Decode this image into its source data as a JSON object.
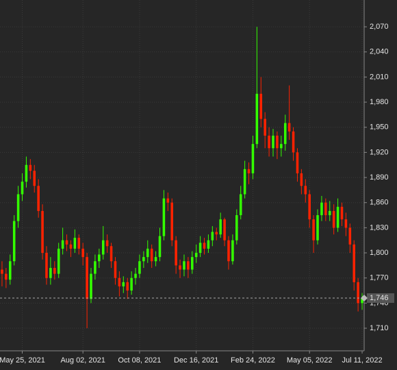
{
  "chart_data": {
    "type": "candlestick",
    "up_color": "#33ff00",
    "down_color": "#ff2200",
    "grid": true,
    "xlim": [
      0,
      90
    ],
    "xticks": [
      {
        "value": 5,
        "label": "May 25, 2021"
      },
      {
        "value": 20,
        "label": "Aug 02, 2021"
      },
      {
        "value": 34,
        "label": "Oct 08, 2021"
      },
      {
        "value": 48,
        "label": "Dec 16, 2021"
      },
      {
        "value": 62,
        "label": "Feb 24, 2022"
      },
      {
        "value": 76,
        "label": "May 05, 2022"
      },
      {
        "value": 89,
        "label": "Jul 11, 2022"
      }
    ],
    "ylim": [
      1683,
      2102
    ],
    "yticks": [
      {
        "value": 1710,
        "label": "1,710"
      },
      {
        "value": 1740,
        "label": "1,740"
      },
      {
        "value": 1770,
        "label": "1,770"
      },
      {
        "value": 1800,
        "label": "1,800"
      },
      {
        "value": 1830,
        "label": "1,830"
      },
      {
        "value": 1860,
        "label": "1,860"
      },
      {
        "value": 1890,
        "label": "1,890"
      },
      {
        "value": 1920,
        "label": "1,920"
      },
      {
        "value": 1950,
        "label": "1,950"
      },
      {
        "value": 1980,
        "label": "1,980"
      },
      {
        "value": 2010,
        "label": "2,010"
      },
      {
        "value": 2040,
        "label": "2,040"
      },
      {
        "value": 2070,
        "label": "2,070"
      }
    ],
    "last_price": {
      "value": 1746,
      "label": "1,746"
    },
    "open": [
      1780,
      1775,
      1768,
      1790,
      1838,
      1870,
      1885,
      1905,
      1898,
      1880,
      1850,
      1800,
      1770,
      1782,
      1775,
      1805,
      1815,
      1810,
      1805,
      1818,
      1805,
      1795,
      1745,
      1775,
      1790,
      1798,
      1815,
      1808,
      1790,
      1770,
      1760,
      1765,
      1755,
      1770,
      1775,
      1790,
      1795,
      1805,
      1790,
      1795,
      1820,
      1865,
      1860,
      1815,
      1785,
      1780,
      1790,
      1780,
      1795,
      1800,
      1812,
      1805,
      1815,
      1825,
      1822,
      1840,
      1815,
      1790,
      1815,
      1845,
      1870,
      1900,
      1895,
      1930,
      1990,
      1960,
      1940,
      1925,
      1940,
      1925,
      1930,
      1955,
      1945,
      1920,
      1895,
      1880,
      1870,
      1840,
      1815,
      1845,
      1860,
      1845,
      1850,
      1830,
      1855,
      1840,
      1830,
      1810,
      1765,
      1740
    ],
    "high": [
      1790,
      1782,
      1798,
      1845,
      1880,
      1895,
      1915,
      1912,
      1905,
      1888,
      1858,
      1808,
      1795,
      1790,
      1812,
      1830,
      1822,
      1815,
      1828,
      1822,
      1812,
      1800,
      1782,
      1798,
      1805,
      1832,
      1822,
      1812,
      1795,
      1778,
      1772,
      1770,
      1778,
      1782,
      1798,
      1802,
      1815,
      1810,
      1802,
      1830,
      1875,
      1872,
      1865,
      1820,
      1792,
      1798,
      1795,
      1802,
      1810,
      1820,
      1818,
      1822,
      1832,
      1830,
      1848,
      1842,
      1820,
      1822,
      1852,
      1880,
      1910,
      1908,
      1940,
      2070,
      2010,
      1968,
      1950,
      1948,
      1945,
      1940,
      1965,
      2000,
      1950,
      1925,
      1900,
      1888,
      1875,
      1845,
      1852,
      1868,
      1865,
      1862,
      1858,
      1865,
      1860,
      1848,
      1835,
      1815,
      1770,
      1752
    ],
    "low": [
      1760,
      1758,
      1762,
      1785,
      1830,
      1862,
      1878,
      1888,
      1872,
      1842,
      1792,
      1762,
      1762,
      1768,
      1770,
      1798,
      1802,
      1795,
      1800,
      1798,
      1785,
      1710,
      1740,
      1768,
      1782,
      1792,
      1800,
      1782,
      1762,
      1748,
      1752,
      1745,
      1750,
      1762,
      1770,
      1782,
      1788,
      1782,
      1784,
      1790,
      1815,
      1850,
      1808,
      1775,
      1770,
      1772,
      1770,
      1775,
      1788,
      1795,
      1798,
      1800,
      1808,
      1815,
      1818,
      1808,
      1780,
      1786,
      1810,
      1840,
      1865,
      1882,
      1888,
      1925,
      1950,
      1925,
      1915,
      1915,
      1912,
      1915,
      1922,
      1935,
      1910,
      1885,
      1870,
      1860,
      1830,
      1800,
      1810,
      1838,
      1838,
      1838,
      1822,
      1825,
      1832,
      1820,
      1800,
      1755,
      1730,
      1732
    ],
    "close": [
      1775,
      1768,
      1790,
      1838,
      1870,
      1885,
      1905,
      1898,
      1880,
      1850,
      1800,
      1770,
      1782,
      1775,
      1805,
      1815,
      1810,
      1805,
      1818,
      1805,
      1795,
      1745,
      1775,
      1790,
      1798,
      1815,
      1808,
      1790,
      1770,
      1760,
      1765,
      1755,
      1770,
      1775,
      1790,
      1795,
      1805,
      1790,
      1795,
      1820,
      1865,
      1860,
      1815,
      1785,
      1780,
      1790,
      1780,
      1795,
      1800,
      1812,
      1805,
      1815,
      1825,
      1822,
      1840,
      1815,
      1790,
      1815,
      1845,
      1870,
      1900,
      1895,
      1930,
      1990,
      1960,
      1940,
      1925,
      1940,
      1925,
      1930,
      1955,
      1945,
      1920,
      1895,
      1880,
      1870,
      1840,
      1815,
      1845,
      1860,
      1845,
      1850,
      1830,
      1855,
      1840,
      1830,
      1810,
      1765,
      1740,
      1746
    ]
  }
}
